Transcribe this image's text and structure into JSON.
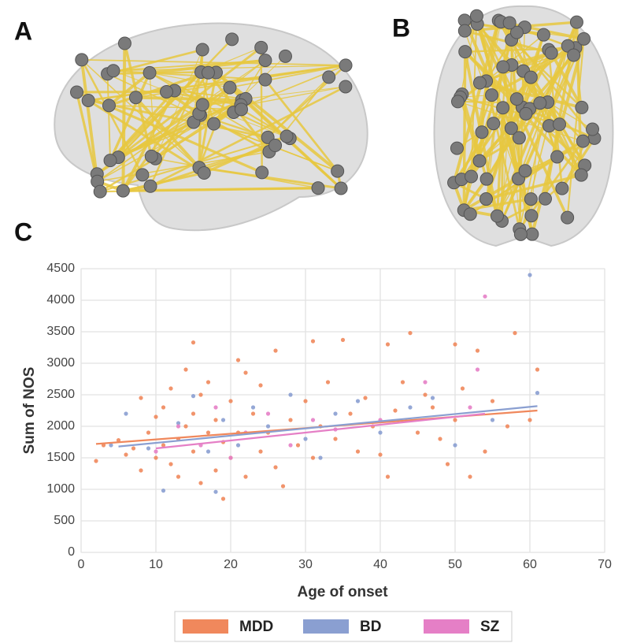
{
  "panel_labels": [
    "A",
    "B",
    "C"
  ],
  "chart_data": {
    "type": "scatter",
    "xlabel": "Age of onset",
    "ylabel": "Sum of NOS",
    "xlim": [
      0,
      70
    ],
    "ylim": [
      0,
      4500
    ],
    "xticks": [
      0,
      10,
      20,
      30,
      40,
      50,
      60,
      70
    ],
    "yticks": [
      0,
      500,
      1000,
      1500,
      2000,
      2500,
      3000,
      3500,
      4000,
      4500
    ],
    "grid": true,
    "series": [
      {
        "name": "MDD",
        "color": "#f0885c",
        "x": [
          2,
          3,
          5,
          6,
          7,
          8,
          8,
          9,
          10,
          10,
          11,
          11,
          12,
          12,
          13,
          13,
          14,
          14,
          15,
          15,
          15,
          16,
          16,
          17,
          17,
          18,
          18,
          19,
          19,
          20,
          20,
          21,
          21,
          22,
          22,
          23,
          24,
          24,
          25,
          26,
          26,
          27,
          28,
          29,
          30,
          31,
          31,
          32,
          33,
          34,
          35,
          36,
          37,
          38,
          39,
          40,
          41,
          41,
          42,
          43,
          44,
          45,
          46,
          47,
          48,
          49,
          50,
          50,
          51,
          52,
          53,
          54,
          55,
          57,
          58,
          60,
          61
        ],
        "values": [
          1450,
          1700,
          1780,
          1550,
          1650,
          2450,
          1300,
          1900,
          1500,
          2150,
          1700,
          2300,
          1400,
          2600,
          1800,
          1200,
          2000,
          2900,
          3330,
          1600,
          2200,
          1100,
          2500,
          1900,
          2700,
          1300,
          2100,
          850,
          1750,
          2400,
          1500,
          3050,
          1900,
          2850,
          1200,
          2200,
          1600,
          2650,
          1900,
          3200,
          1350,
          1050,
          2100,
          1700,
          2400,
          3350,
          1500,
          2000,
          2700,
          1800,
          3370,
          2200,
          1600,
          2450,
          2000,
          1550,
          3300,
          1200,
          2250,
          2700,
          3480,
          1900,
          2500,
          2300,
          1800,
          1400,
          2100,
          3300,
          2600,
          1200,
          3200,
          1600,
          2400,
          2000,
          3480,
          2100,
          2900
        ]
      },
      {
        "name": "BD",
        "color": "#8a9fd1",
        "x": [
          4,
          6,
          9,
          11,
          13,
          15,
          17,
          18,
          19,
          21,
          23,
          25,
          28,
          30,
          32,
          34,
          37,
          40,
          44,
          47,
          50,
          55,
          60,
          61
        ],
        "values": [
          1700,
          2200,
          1650,
          980,
          2050,
          2480,
          1600,
          960,
          2100,
          1700,
          2300,
          2000,
          2500,
          1800,
          1500,
          2200,
          2400,
          1900,
          2300,
          2450,
          1700,
          2100,
          4400,
          2530
        ]
      },
      {
        "name": "SZ",
        "color": "#e57fc6",
        "x": [
          10,
          13,
          16,
          18,
          20,
          22,
          25,
          28,
          31,
          34,
          40,
          46,
          52,
          53,
          54
        ],
        "values": [
          1600,
          2000,
          1700,
          2300,
          1500,
          1900,
          2200,
          1700,
          2100,
          1950,
          2100,
          2700,
          2300,
          2900,
          4060
        ]
      }
    ],
    "fit_lines": [
      {
        "color": "#f0885c",
        "x": [
          2,
          61
        ],
        "values": [
          1720,
          2250
        ]
      },
      {
        "color": "#8a9fd1",
        "x": [
          5,
          61
        ],
        "values": [
          1680,
          2320
        ]
      },
      {
        "color": "#e57fc6",
        "x": [
          10,
          54
        ],
        "values": [
          1650,
          2200
        ]
      }
    ]
  }
}
